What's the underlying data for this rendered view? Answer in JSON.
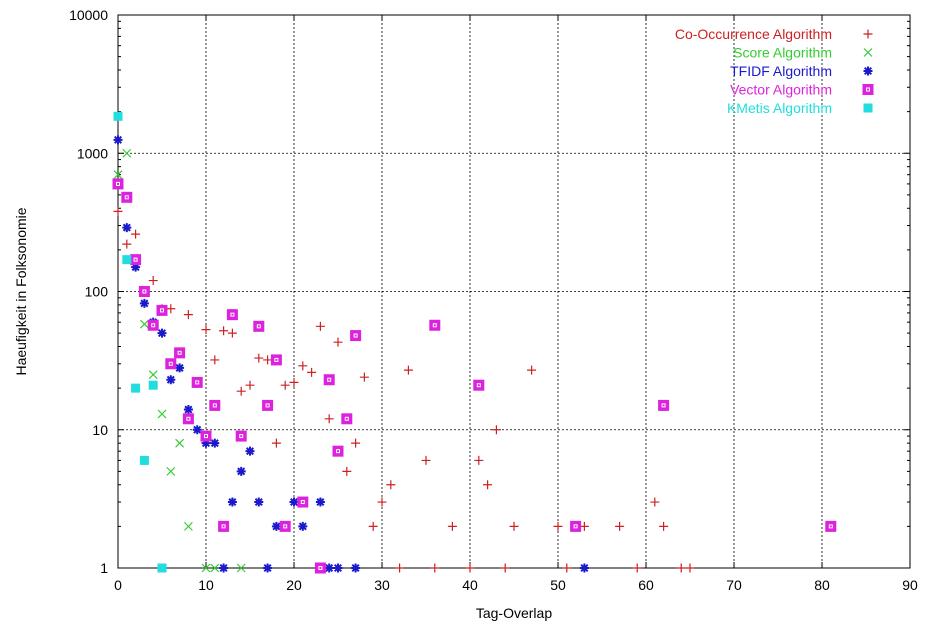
{
  "chart_data": {
    "type": "scatter",
    "xlabel": "Tag-Overlap",
    "ylabel": "Haeufigkeit in Folksonomie",
    "xlim": [
      0,
      90
    ],
    "ylim": [
      1,
      10000
    ],
    "yscale": "log",
    "grid": true,
    "legend_position": "top-right",
    "x_ticks": [
      0,
      10,
      20,
      30,
      40,
      50,
      60,
      70,
      80,
      90
    ],
    "y_ticks": [
      1,
      10,
      100,
      1000,
      10000
    ],
    "x_tick_labels": [
      "0",
      "10",
      "20",
      "30",
      "40",
      "50",
      "60",
      "70",
      "80",
      "90"
    ],
    "y_tick_labels": [
      "1",
      "10",
      "100",
      "1000",
      "10000"
    ],
    "series": [
      {
        "name": "Co-Occurrence Algorithm",
        "color": "#cc2222",
        "marker": "plus",
        "points": [
          [
            0,
            380
          ],
          [
            1,
            220
          ],
          [
            2,
            260
          ],
          [
            3,
            100
          ],
          [
            4,
            120
          ],
          [
            5,
            75
          ],
          [
            6,
            75
          ],
          [
            8,
            68
          ],
          [
            10,
            53
          ],
          [
            11,
            32
          ],
          [
            12,
            52
          ],
          [
            13,
            50
          ],
          [
            14,
            19
          ],
          [
            15,
            21
          ],
          [
            16,
            33
          ],
          [
            17,
            32
          ],
          [
            18,
            8
          ],
          [
            19,
            21
          ],
          [
            20,
            22
          ],
          [
            21,
            29
          ],
          [
            22,
            26
          ],
          [
            23,
            56
          ],
          [
            24,
            12
          ],
          [
            25,
            43
          ],
          [
            26,
            5
          ],
          [
            27,
            8
          ],
          [
            28,
            24
          ],
          [
            29,
            2
          ],
          [
            30,
            3
          ],
          [
            31,
            4
          ],
          [
            32,
            1
          ],
          [
            33,
            27
          ],
          [
            35,
            6
          ],
          [
            36,
            1
          ],
          [
            38,
            2
          ],
          [
            40,
            1
          ],
          [
            41,
            6
          ],
          [
            42,
            4
          ],
          [
            43,
            10
          ],
          [
            44,
            1
          ],
          [
            45,
            2
          ],
          [
            47,
            27
          ],
          [
            50,
            2
          ],
          [
            51,
            1
          ],
          [
            53,
            2
          ],
          [
            57,
            2
          ],
          [
            59,
            1
          ],
          [
            61,
            3
          ],
          [
            62,
            2
          ],
          [
            64,
            1
          ],
          [
            65,
            1
          ]
        ]
      },
      {
        "name": "Score Algorithm",
        "color": "#33cc33",
        "marker": "cross",
        "points": [
          [
            0,
            700
          ],
          [
            1,
            1000
          ],
          [
            3,
            58
          ],
          [
            4,
            25
          ],
          [
            5,
            13
          ],
          [
            6,
            5
          ],
          [
            7,
            8
          ],
          [
            8,
            2
          ],
          [
            10,
            1
          ],
          [
            11,
            1
          ],
          [
            14,
            1
          ]
        ]
      },
      {
        "name": "TFIDF Algorithm",
        "color": "#1a1acc",
        "marker": "star",
        "points": [
          [
            0,
            1250
          ],
          [
            1,
            290
          ],
          [
            2,
            150
          ],
          [
            3,
            82
          ],
          [
            4,
            60
          ],
          [
            5,
            50
          ],
          [
            6,
            23
          ],
          [
            7,
            28
          ],
          [
            8,
            14
          ],
          [
            9,
            10
          ],
          [
            10,
            8
          ],
          [
            11,
            8
          ],
          [
            12,
            1
          ],
          [
            13,
            3
          ],
          [
            14,
            5
          ],
          [
            15,
            7
          ],
          [
            16,
            3
          ],
          [
            17,
            1
          ],
          [
            18,
            2
          ],
          [
            20,
            3
          ],
          [
            21,
            2
          ],
          [
            23,
            3
          ],
          [
            24,
            1
          ],
          [
            25,
            1
          ],
          [
            27,
            1
          ],
          [
            53,
            1
          ]
        ]
      },
      {
        "name": "Vector Algorithm",
        "color": "#dd22dd",
        "marker": "square",
        "points": [
          [
            0,
            600
          ],
          [
            1,
            480
          ],
          [
            2,
            170
          ],
          [
            3,
            100
          ],
          [
            4,
            57
          ],
          [
            5,
            73
          ],
          [
            6,
            30
          ],
          [
            7,
            36
          ],
          [
            8,
            12
          ],
          [
            9,
            22
          ],
          [
            10,
            9
          ],
          [
            11,
            15
          ],
          [
            12,
            2
          ],
          [
            13,
            68
          ],
          [
            14,
            9
          ],
          [
            16,
            56
          ],
          [
            17,
            15
          ],
          [
            18,
            32
          ],
          [
            19,
            2
          ],
          [
            21,
            3
          ],
          [
            23,
            1
          ],
          [
            24,
            23
          ],
          [
            25,
            7
          ],
          [
            26,
            12
          ],
          [
            27,
            48
          ],
          [
            36,
            57
          ],
          [
            41,
            21
          ],
          [
            52,
            2
          ],
          [
            62,
            15
          ],
          [
            81,
            2
          ]
        ]
      },
      {
        "name": "KMetis Algorithm",
        "color": "#22dddd",
        "marker": "filled-square",
        "points": [
          [
            0,
            1850
          ],
          [
            1,
            170
          ],
          [
            2,
            20
          ],
          [
            3,
            6
          ],
          [
            4,
            21
          ],
          [
            5,
            1
          ]
        ]
      }
    ]
  }
}
